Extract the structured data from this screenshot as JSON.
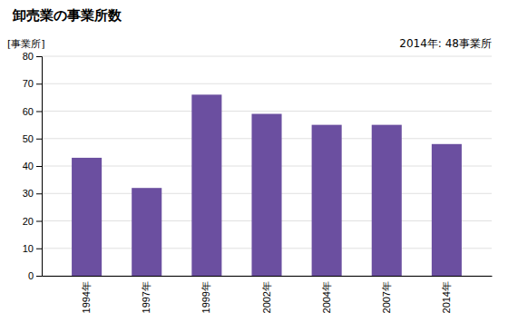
{
  "chart_data": {
    "type": "bar",
    "title": "卸売業の事業所数",
    "ylabel": "[事業所]",
    "annotation": "2014年: 48事業所",
    "categories": [
      "1994年",
      "1997年",
      "1999年",
      "2002年",
      "2004年",
      "2007年",
      "2014年"
    ],
    "values": [
      43,
      32,
      66,
      59,
      55,
      55,
      48
    ],
    "color": "#6B4FA0",
    "ylim": [
      0,
      80
    ],
    "yticks": [
      0,
      10,
      20,
      30,
      40,
      50,
      60,
      70,
      80
    ],
    "grid": true
  }
}
